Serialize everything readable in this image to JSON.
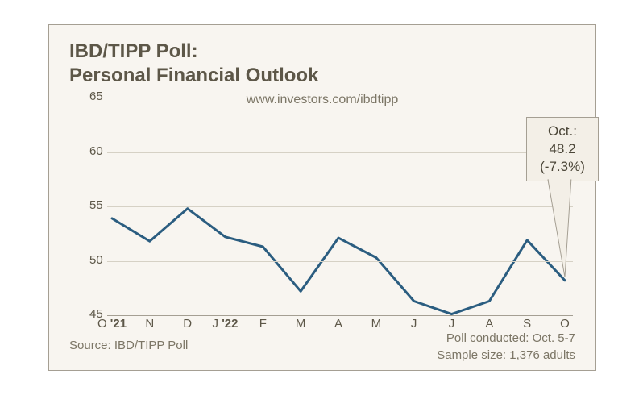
{
  "title_line1": "IBD/TIPP Poll:",
  "title_line2": "Personal Financial Outlook",
  "title_fontsize": 24,
  "subtitle": "www.investors.com/ibdtipp",
  "subtitle_fontsize": 16,
  "chart": {
    "type": "line",
    "background_color": "#f8f5f0",
    "frame_border_color": "#a59f93",
    "ylim": [
      45,
      65
    ],
    "yticks": [
      45,
      50,
      55,
      60,
      65
    ],
    "ytick_fontsize": 15,
    "ytick_color": "#5d5748",
    "xlabels": [
      "O '21",
      "N",
      "D",
      "J '22",
      "F",
      "M",
      "A",
      "M",
      "J",
      "J",
      "A",
      "S",
      "O"
    ],
    "xlabel_fontsize": 15,
    "xlabel_color": "#5d5748",
    "grid_major_color": "#a59f93",
    "grid_minor_color": "#d6d1c5",
    "line_color": "#2b5d80",
    "line_width": 3,
    "values": [
      53.9,
      51.8,
      54.8,
      52.2,
      51.3,
      47.2,
      52.1,
      50.3,
      46.3,
      45.1,
      46.3,
      51.9,
      48.2
    ]
  },
  "callout": {
    "line1": "Oct.:",
    "line2": "48.2",
    "line3": "(-7.3%)",
    "fontsize": 17,
    "bg_color": "#f3efe7",
    "border_color": "#a59f93",
    "text_color": "#4b4638"
  },
  "footer": {
    "left": "Source: IBD/TIPP Poll",
    "right_line1": "Poll conducted: Oct. 5-7",
    "right_line2": "Sample size: 1,376 adults",
    "fontsize": 15,
    "color": "#7c7666"
  }
}
